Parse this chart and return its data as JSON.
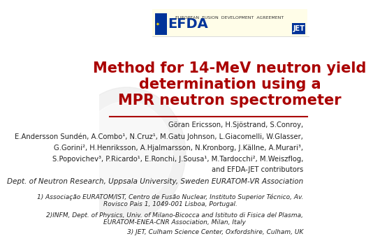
{
  "background_color": "#ffffff",
  "header_bg_color": "#fffde8",
  "title_color": "#aa0000",
  "title_text": "Method for 14-MeV neutron yield\ndetermination using a\nMPR neutron spectrometer",
  "title_fontsize": 15,
  "underline_color": "#aa0000",
  "authors_line1": "Göran Ericsson, H.Sjöstrand, S.Conroy,",
  "authors_line2": "E.Andersson Sundén, A.Combo¹, N.Cruz¹, M.Gatu Johnson, L.Giacomelli, W.Glasser,",
  "authors_line3": "G.Gorini², H.Henriksson, A.Hjalmarsson, N.Kronborg, J.Källne, A.Murari³,",
  "authors_line4": "S.Popovichev³, P.Ricardo¹, E.Ronchi, J.Sousa¹, M.Tardocchi², M.Weiszflog,",
  "authors_line5": "and EFDA-JET contributors",
  "affil1": "Dept. of Neutron Research, Uppsala University, Sweden EURATOM-VR Association",
  "affil2": "1) Associação EURATOM/IST, Centro de Fusão Nuclear, Instituto Superior Técnico, Av.\nRovisco Pais 1, 1049-001 Lisboa, Portugal.",
  "affil3": "2)INFM, Dept. of Physics, Univ. of Milano-Bicocca and Istituto di Fisica del Plasma,\nEURATOM-ENEA-CNR Association, Milan, Italy",
  "affil4": "3) JET, Culham Science Center, Oxfordshire, Culham, UK",
  "efda_subtitle": "EUROPEAN  FUSION  DEVELOPMENT  AGREEMENT",
  "text_color": "#222222",
  "affil_fontsize": 6.5,
  "authors_fontsize": 7.2,
  "affil1_fontsize": 7.5
}
